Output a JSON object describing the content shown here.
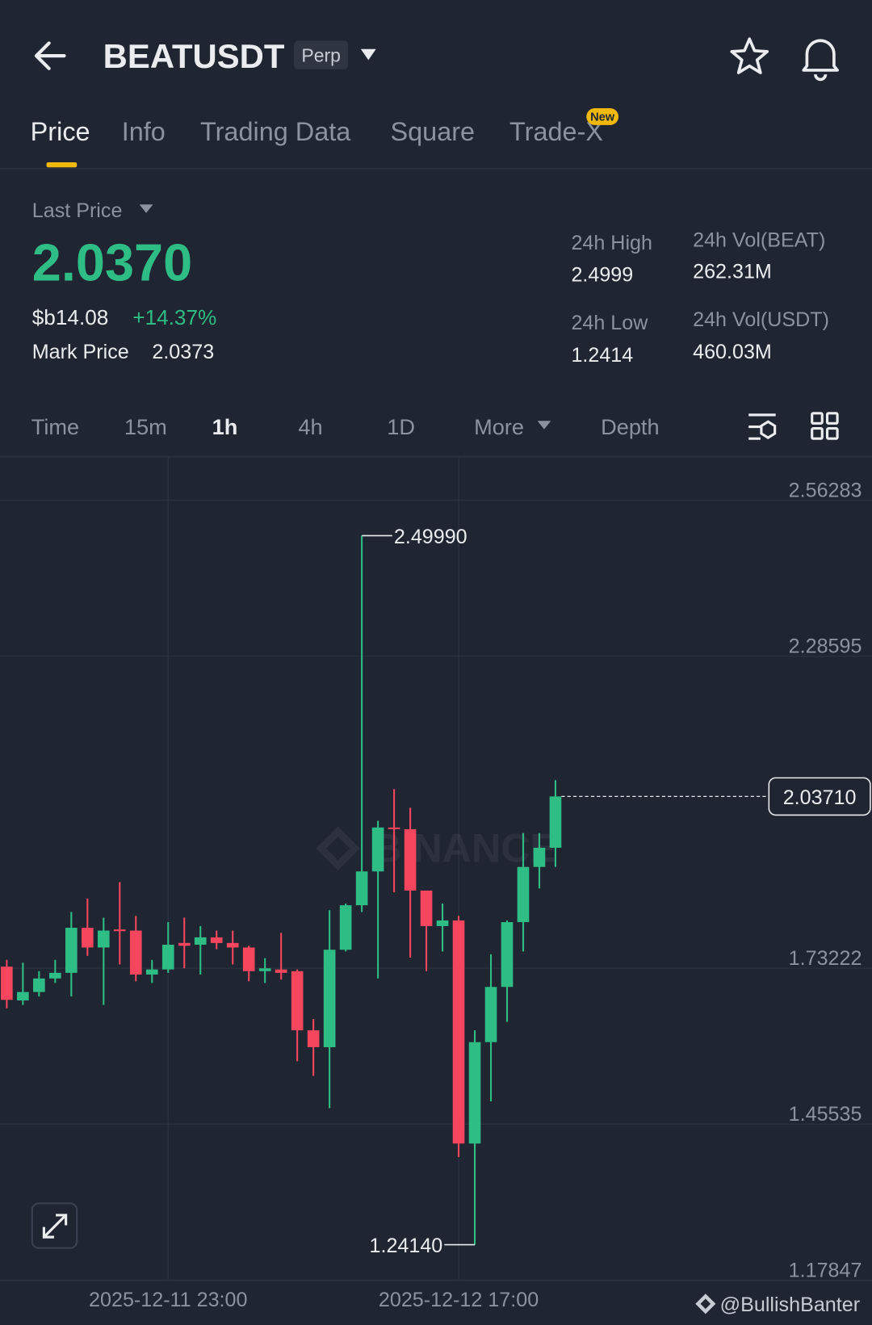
{
  "header": {
    "symbol": "BEATUSDT",
    "badge": "Perp"
  },
  "tabs": [
    "Price",
    "Info",
    "Trading Data",
    "Square",
    "Trade-X"
  ],
  "tab_badge": "New",
  "ticker": {
    "last_price_label": "Last Price",
    "last_price": "2.0370",
    "price_alt": "$b14.08",
    "change": "+14.37%",
    "mark_price_label": "Mark Price",
    "mark_price": "2.0373",
    "stats": [
      {
        "label": "24h High",
        "value": "2.4999"
      },
      {
        "label": "24h Vol(BEAT)",
        "value": "262.31M"
      },
      {
        "label": "24h Low",
        "value": "1.2414"
      },
      {
        "label": "24h Vol(USDT)",
        "value": "460.03M"
      }
    ]
  },
  "intervals": [
    "Time",
    "15m",
    "1h",
    "4h",
    "1D",
    "More",
    "Depth"
  ],
  "chart_data": {
    "type": "candlestick",
    "watermark": "BINANCE",
    "categories": [
      null,
      null,
      null,
      null,
      null,
      null,
      null,
      null,
      null,
      null,
      "2025-12-11 23:00",
      null,
      null,
      null,
      null,
      null,
      null,
      null,
      null,
      null,
      null,
      null,
      null,
      null,
      null,
      null,
      null,
      null,
      "2025-12-12 17:00",
      null,
      null,
      null,
      null,
      null,
      null
    ],
    "open": [
      1.735,
      1.675,
      1.69,
      1.714,
      1.724,
      1.804,
      1.769,
      1.801,
      1.799,
      1.721,
      1.73,
      1.777,
      1.774,
      1.787,
      1.777,
      1.769,
      1.727,
      1.73,
      1.727,
      1.622,
      1.592,
      1.765,
      1.844,
      1.904,
      1.982,
      1.979,
      1.87,
      1.807,
      1.817,
      1.421,
      1.601,
      1.699,
      1.814,
      1.912,
      1.946
    ],
    "high": [
      1.747,
      1.742,
      1.727,
      1.747,
      1.832,
      1.856,
      1.822,
      1.885,
      1.825,
      1.747,
      1.814,
      1.822,
      1.807,
      1.799,
      1.799,
      1.772,
      1.75,
      1.795,
      1.73,
      1.642,
      1.835,
      1.847,
      2.4999,
      1.994,
      2.05,
      2.017,
      1.87,
      1.847,
      1.825,
      1.622,
      1.757,
      1.817,
      1.972,
      1.972,
      2.066
    ],
    "low": [
      1.661,
      1.667,
      1.682,
      1.706,
      1.682,
      1.754,
      1.667,
      1.739,
      1.709,
      1.706,
      1.724,
      1.732,
      1.721,
      1.766,
      1.739,
      1.709,
      1.706,
      1.712,
      1.567,
      1.541,
      1.484,
      1.762,
      1.832,
      1.714,
      1.867,
      1.751,
      1.727,
      1.762,
      1.397,
      1.2414,
      1.496,
      1.637,
      1.762,
      1.874,
      1.912
    ],
    "close": [
      1.676,
      1.69,
      1.714,
      1.724,
      1.804,
      1.769,
      1.799,
      1.798,
      1.721,
      1.73,
      1.774,
      1.772,
      1.787,
      1.777,
      1.769,
      1.727,
      1.732,
      1.724,
      1.622,
      1.592,
      1.765,
      1.844,
      1.904,
      1.982,
      1.979,
      1.87,
      1.807,
      1.817,
      1.421,
      1.601,
      1.699,
      1.814,
      1.912,
      1.946,
      2.0371
    ],
    "up_color": "#2ebd85",
    "down_color": "#f6465d",
    "ylim": [
      1.17847,
      2.6393
    ],
    "yticks": [
      {
        "value": 2.56283,
        "label": "2.56283"
      },
      {
        "value": 2.28595,
        "label": "2.28595"
      },
      {
        "value": 1.73222,
        "label": "1.73222"
      },
      {
        "value": 1.45535,
        "label": "1.45535"
      },
      {
        "value": 1.17847,
        "label": "1.17847"
      }
    ],
    "grid": true,
    "annotations": [
      {
        "value": 2.4999,
        "label": "2.49990"
      },
      {
        "value": 1.2414,
        "label": "1.24140"
      }
    ],
    "last_price_marker": {
      "value": 2.0371,
      "label": "2.03710"
    }
  },
  "footer": "@BullishBanter"
}
